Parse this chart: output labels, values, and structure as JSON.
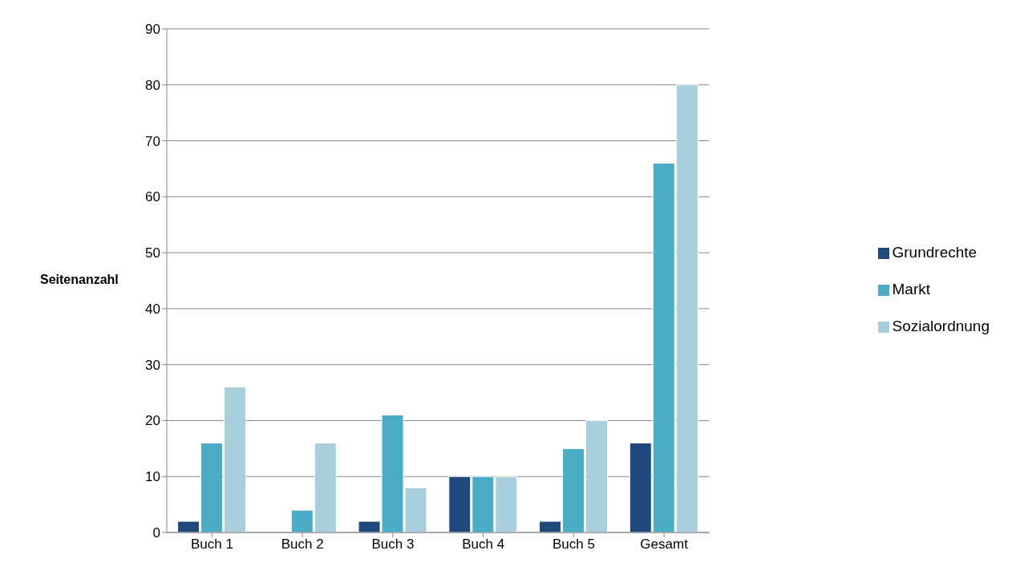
{
  "chart_data": {
    "type": "bar",
    "ylabel": "Seitenanzahl",
    "categories": [
      "Buch 1",
      "Buch 2",
      "Buch 3",
      "Buch 4",
      "Buch 5",
      "Gesamt"
    ],
    "series": [
      {
        "name": "Grundrechte",
        "color": "#1f497d",
        "values": [
          2,
          0,
          2,
          10,
          2,
          16
        ]
      },
      {
        "name": "Markt",
        "color": "#4bacc6",
        "values": [
          16,
          4,
          21,
          10,
          15,
          66
        ]
      },
      {
        "name": "Sozialordnung",
        "color": "#a8d0dc",
        "values": [
          26,
          16,
          8,
          10,
          20,
          80
        ]
      }
    ],
    "ylim": [
      0,
      90
    ],
    "yticks": [
      0,
      10,
      20,
      30,
      40,
      50,
      60,
      70,
      80,
      90
    ],
    "grid": "y",
    "legend": "right"
  }
}
